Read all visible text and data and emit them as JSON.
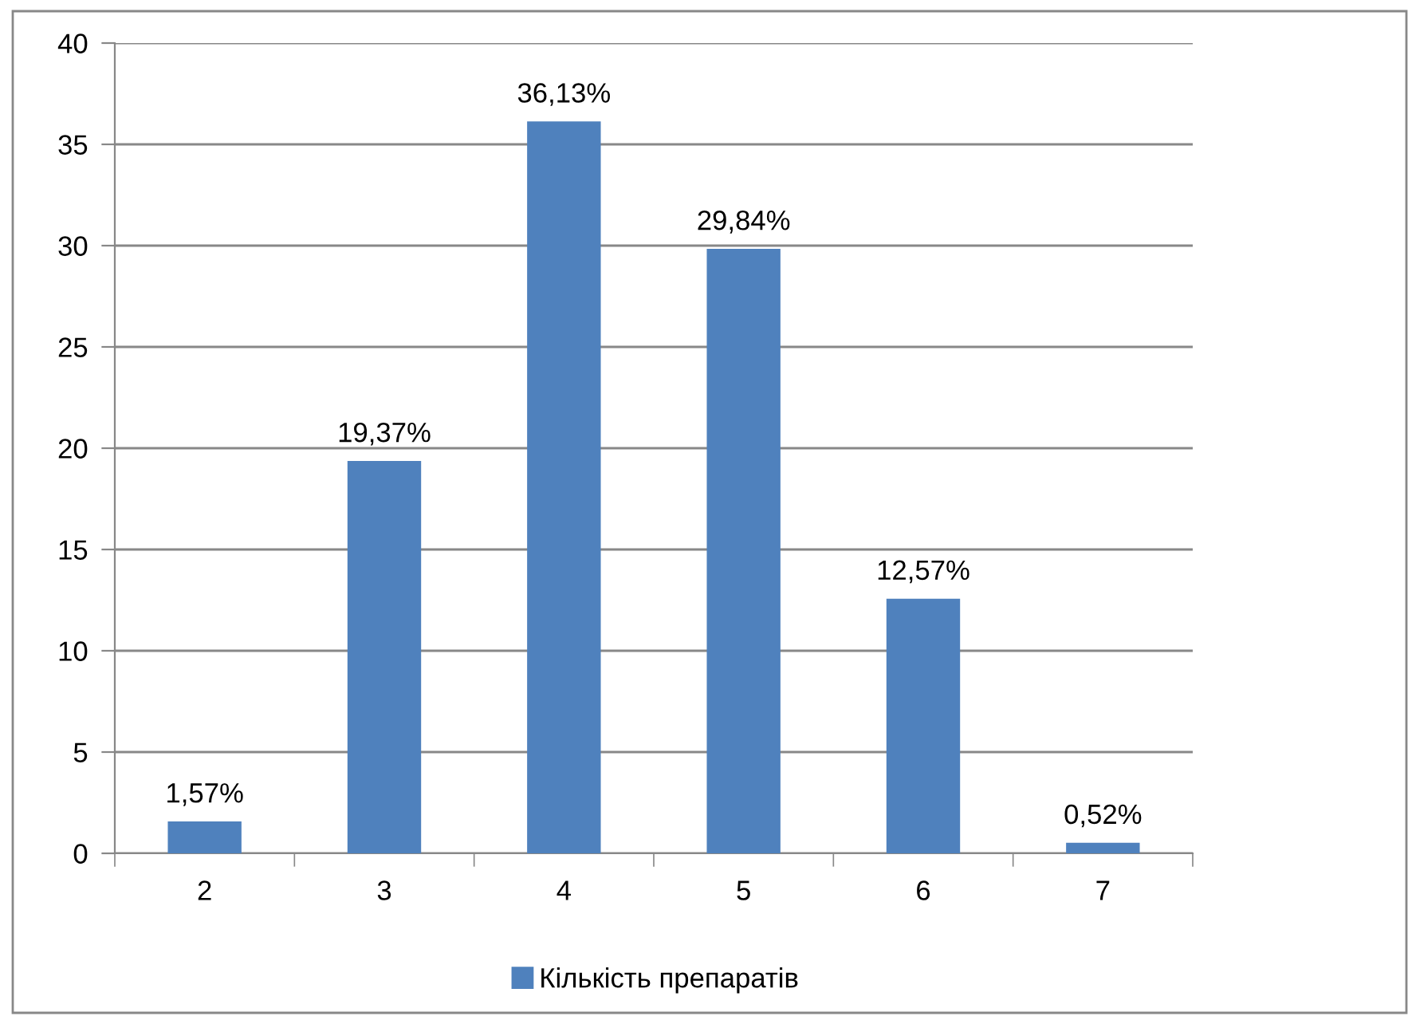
{
  "chart_data": {
    "type": "bar",
    "categories": [
      "2",
      "3",
      "4",
      "5",
      "6",
      "7"
    ],
    "series": [
      {
        "name": "Кількість препаратів",
        "color": "#4f81bd",
        "values": [
          1.57,
          19.37,
          36.13,
          29.84,
          12.57,
          0.52
        ],
        "value_labels": [
          "1,57%",
          "19,37%",
          "36,13%",
          "29,84%",
          "12,57%",
          "0,52%"
        ]
      }
    ],
    "ylim": [
      0,
      40
    ],
    "yticks": [
      0,
      5,
      10,
      15,
      20,
      25,
      30,
      35,
      40
    ],
    "grid": "y",
    "legend": "bottom"
  }
}
